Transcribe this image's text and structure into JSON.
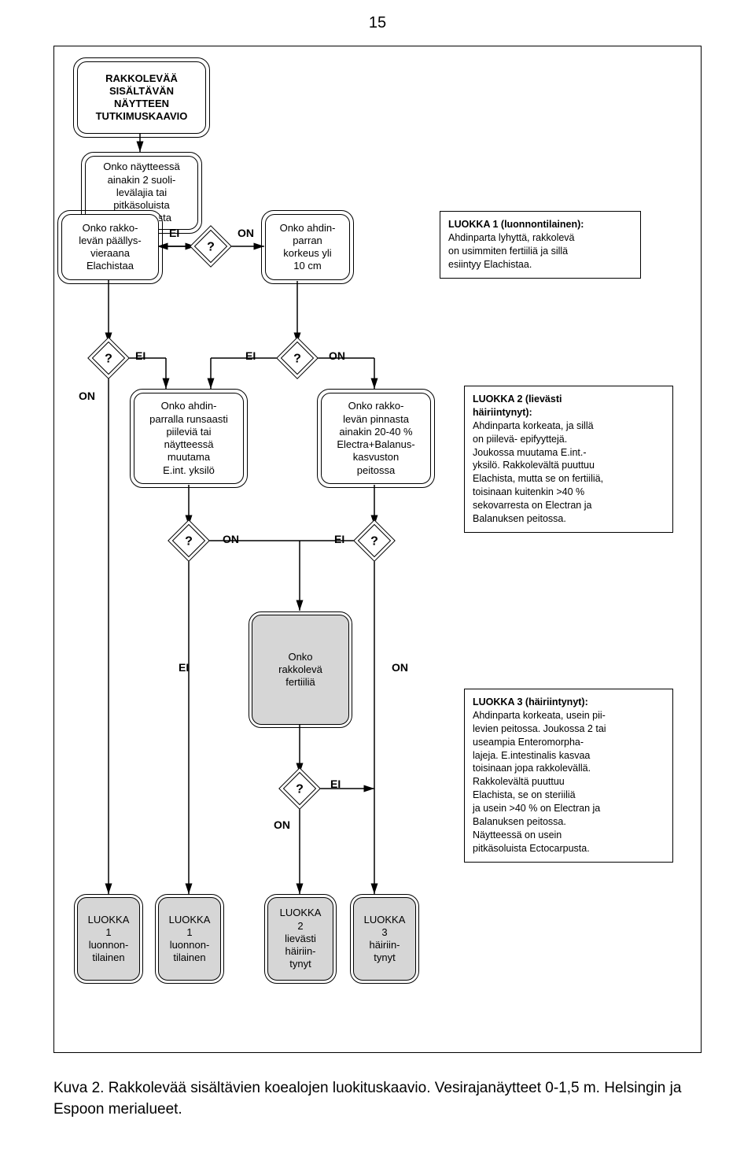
{
  "pageNumber": "15",
  "caption": "Kuva 2. Rakkolevää sisältävien koealojen luokituskaavio. Vesirajanäytteet 0-1,5 m. Helsingin ja Espoon merialueet.",
  "nodes": {
    "title": "RAKKOLEVÄÄ\nSISÄLTÄVÄN\nNÄYTTEEN\nTUTKIMUSKAAVIO",
    "q1": "Onko näytteessä\nainakin 2 suoli-\nlevälajia tai\npitkäsoluista\nEctocarpusta",
    "elachistaa": "Onko rakko-\nlevän päällys-\nvieraana\nElachistaa",
    "ahdinparran": "Onko ahdin-\nparran\nkorkeus yli\n10 cm",
    "ahdinRuns": "Onko ahdin-\nparralla runsaasti\npiileviä tai\nnäytteessä\nmuutama\nE.int. yksilö",
    "pinnasta": "Onko rakko-\nlevän pinnasta\nainakin 20-40 %\nElectra+Balanus-\nkasvuston\npeitossa",
    "fertiilia": "Onko\nrakkolevä\nfertiiliä",
    "luokka1a": "LUOKKA\n1\nluonnon-\ntilainen",
    "luokka1b": "LUOKKA\n1\nluonnon-\ntilainen",
    "luokka2": "LUOKKA\n2\nlievästi\nhäiriin-\ntynyt",
    "luokka3": "LUOKKA\n3\nhäiriin-\ntynyt"
  },
  "textboxes": {
    "tb1": "LUOKKA 1 (luonnontilainen):\nAhdinparta lyhyttä, rakkolevä\non usimmiten fertiiliä ja sillä\nesiintyy Elachistaa.",
    "tb2": "LUOKKA 2 (lievästi\nhäiriintynyt):\nAhdinparta korkeata, ja sillä\non piilevä- epifyyttejä.\nJoukossa muutama E.int.-\nyksilö. Rakkolevältä puuttuu\nElachista, mutta se on fertiiliä,\ntoisinaan kuitenkin >40 %\nsekovarresta on Electran ja\nBalanuksen peitossa.",
    "tb3": "LUOKKA 3 (häiriintynyt):\nAhdinparta korkeata, usein pii-\nlevien peitossa. Joukossa 2 tai\nuseampia Enteromorpha-\nlajeja. E.intestinalis kasvaa\ntoisinaan jopa rakkolevällä.\nRakkolevältä puuttuu\nElachista, se on steriiliä\nja usein >40 % on Electran ja\nBalanuksen peitossa.\nNäytteessä on usein\npitkäsoluista Ectocarpusta."
  },
  "labels": {
    "ei": "EI",
    "on": "ON",
    "q": "?"
  },
  "style": {
    "bg": "#ffffff",
    "gray": "#d6d6d6",
    "border": "#000000",
    "font_body": 13,
    "font_label": 14,
    "font_page": 20,
    "font_caption": 19,
    "node_radius": 12
  }
}
